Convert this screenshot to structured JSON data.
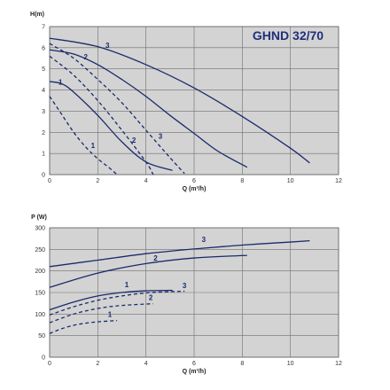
{
  "chart_data": [
    {
      "type": "line",
      "title": "GHND 32/70",
      "xlabel": "Q (m³/h)",
      "ylabel": "H(m)",
      "xlim": [
        0,
        12
      ],
      "ylim": [
        0,
        7
      ],
      "xticks": [
        0,
        2,
        4,
        6,
        8,
        10,
        12
      ],
      "yticks": [
        0,
        1,
        2,
        3,
        4,
        5,
        6,
        7
      ],
      "grid": true,
      "series": [
        {
          "name": "3",
          "style": "solid",
          "color": "#1a2a6c",
          "x": [
            0,
            2,
            4,
            6,
            8,
            10,
            10.8
          ],
          "y": [
            6.45,
            6.05,
            5.2,
            4.1,
            2.75,
            1.25,
            0.55
          ]
        },
        {
          "name": "2",
          "style": "solid",
          "color": "#1a2a6c",
          "x": [
            0,
            1,
            2,
            3,
            4,
            5,
            6,
            7,
            8.2
          ],
          "y": [
            5.9,
            5.7,
            5.2,
            4.5,
            3.7,
            2.8,
            1.95,
            1.1,
            0.35
          ]
        },
        {
          "name": "1",
          "style": "solid",
          "color": "#1a2a6c",
          "x": [
            0,
            0.5,
            1,
            2,
            3,
            4,
            5.1
          ],
          "y": [
            4.4,
            4.3,
            3.9,
            2.8,
            1.55,
            0.6,
            0.2
          ]
        },
        {
          "name": "3",
          "style": "dashed",
          "color": "#1a2a6c",
          "x": [
            0,
            1,
            2,
            3,
            4,
            5,
            5.6
          ],
          "y": [
            6.2,
            5.5,
            4.5,
            3.4,
            2.1,
            0.8,
            0.05
          ]
        },
        {
          "name": "2",
          "style": "dashed",
          "color": "#1a2a6c",
          "x": [
            0,
            1,
            2,
            3,
            4,
            4.3
          ],
          "y": [
            5.6,
            4.7,
            3.5,
            2.1,
            0.6,
            0.0
          ]
        },
        {
          "name": "1",
          "style": "dashed",
          "color": "#1a2a6c",
          "x": [
            0,
            0.5,
            1,
            1.5,
            2,
            2.5,
            2.8
          ],
          "y": [
            3.7,
            2.85,
            2.0,
            1.3,
            0.75,
            0.3,
            0.0
          ]
        }
      ],
      "curve_labels": [
        {
          "text": "3",
          "x": 2.4,
          "y": 6.0
        },
        {
          "text": "2",
          "x": 1.5,
          "y": 5.45
        },
        {
          "text": "1",
          "x": 0.45,
          "y": 4.25
        },
        {
          "text": "3",
          "x": 4.6,
          "y": 1.7
        },
        {
          "text": "2",
          "x": 3.5,
          "y": 1.5
        },
        {
          "text": "1",
          "x": 1.8,
          "y": 1.25
        }
      ]
    },
    {
      "type": "line",
      "title": "",
      "xlabel": "Q (m³/h)",
      "ylabel": "P (W)",
      "xlim": [
        0,
        12
      ],
      "ylim": [
        0,
        300
      ],
      "xticks": [
        0,
        2,
        4,
        6,
        8,
        10,
        12
      ],
      "yticks": [
        0,
        50,
        100,
        150,
        200,
        250,
        300
      ],
      "grid": true,
      "series": [
        {
          "name": "3",
          "style": "solid",
          "color": "#1a2a6c",
          "x": [
            0,
            2,
            4,
            6,
            8,
            10,
            10.8
          ],
          "y": [
            210,
            225,
            240,
            251,
            260,
            267,
            270
          ]
        },
        {
          "name": "2",
          "style": "solid",
          "color": "#1a2a6c",
          "x": [
            0,
            2,
            4,
            6,
            8.2
          ],
          "y": [
            162,
            195,
            217,
            230,
            236
          ]
        },
        {
          "name": "1",
          "style": "solid",
          "color": "#1a2a6c",
          "x": [
            0,
            1,
            2,
            3,
            4,
            5.1
          ],
          "y": [
            110,
            128,
            142,
            150,
            154,
            155
          ]
        },
        {
          "name": "3",
          "style": "dashed",
          "color": "#1a2a6c",
          "x": [
            0,
            1,
            2,
            3,
            4,
            5,
            5.6
          ],
          "y": [
            98,
            117,
            132,
            142,
            149,
            152,
            153
          ]
        },
        {
          "name": "2",
          "style": "dashed",
          "color": "#1a2a6c",
          "x": [
            0,
            1,
            2,
            3,
            4.3
          ],
          "y": [
            80,
            100,
            113,
            120,
            124
          ]
        },
        {
          "name": "1",
          "style": "dashed",
          "color": "#1a2a6c",
          "x": [
            0,
            0.5,
            1,
            1.5,
            2,
            2.5,
            2.8
          ],
          "y": [
            55,
            66,
            74,
            79,
            82,
            84,
            85
          ]
        }
      ],
      "curve_labels": [
        {
          "text": "3",
          "x": 6.4,
          "y": 267
        },
        {
          "text": "2",
          "x": 4.4,
          "y": 224
        },
        {
          "text": "1",
          "x": 3.2,
          "y": 162
        },
        {
          "text": "3",
          "x": 5.6,
          "y": 160
        },
        {
          "text": "2",
          "x": 4.2,
          "y": 133
        },
        {
          "text": "1",
          "x": 2.5,
          "y": 93
        }
      ]
    }
  ]
}
